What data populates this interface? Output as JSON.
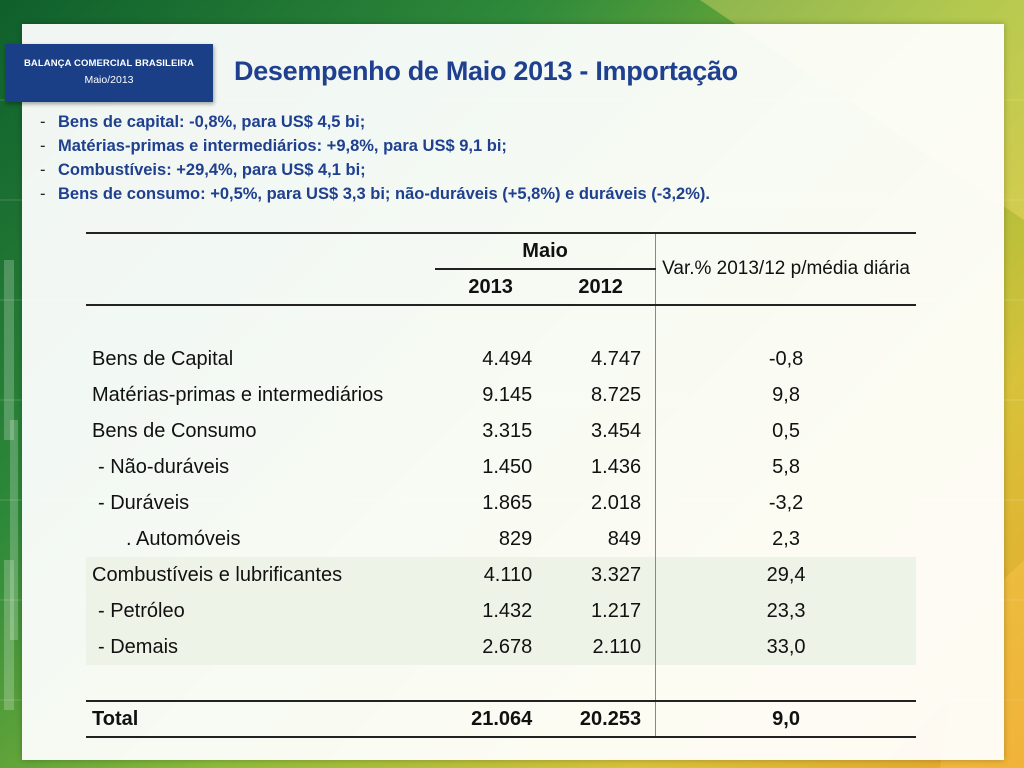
{
  "badge": {
    "line1": "BALANÇA COMERCIAL BRASILEIRA",
    "line2": "Maio/2013"
  },
  "title": "Desempenho de Maio 2013 - Importação",
  "bullets": [
    "Bens de capital: -0,8%, para US$ 4,5 bi;",
    "Matérias-primas e intermediários: +9,8%, para US$ 9,1 bi;",
    "Combustíveis: +29,4%, para US$ 4,1 bi;",
    "Bens de consumo: +0,5%, para US$ 3,3 bi; não-duráveis (+5,8%) e duráveis (-3,2%)."
  ],
  "bullet_dash": "-",
  "table": {
    "header_group": "Maio",
    "header_var": "Var.% 2013/12 p/média diária",
    "col_2013": "2013",
    "col_2012": "2012",
    "rows": [
      {
        "label": "Bens de Capital",
        "v2013": "4.494",
        "v2012": "4.747",
        "var": "-0,8"
      },
      {
        "label": "Matérias-primas e intermediários",
        "v2013": "9.145",
        "v2012": "8.725",
        "var": "9,8"
      },
      {
        "label": "Bens de Consumo",
        "v2013": "3.315",
        "v2012": "3.454",
        "var": "0,5"
      },
      {
        "label": " - Não-duráveis",
        "v2013": "1.450",
        "v2012": "1.436",
        "var": "5,8"
      },
      {
        "label": " - Duráveis",
        "v2013": "1.865",
        "v2012": "2.018",
        "var": "-3,2"
      },
      {
        "label": ". Automóveis",
        "v2013": "829",
        "v2012": "849",
        "var": "2,3"
      },
      {
        "label": "Combustíveis e lubrificantes",
        "v2013": "4.110",
        "v2012": "3.327",
        "var": "29,4"
      },
      {
        "label": " - Petróleo",
        "v2013": "1.432",
        "v2012": "1.217",
        "var": "23,3"
      },
      {
        "label": " - Demais",
        "v2013": "2.678",
        "v2012": "2.110",
        "var": "33,0"
      }
    ],
    "total": {
      "label": "Total",
      "v2013": "21.064",
      "v2012": "20.253",
      "var": "9,0"
    }
  },
  "colors": {
    "title": "#1f3f8f",
    "badge": "#1a3f86",
    "shaded_rows": "#eef3e8"
  }
}
